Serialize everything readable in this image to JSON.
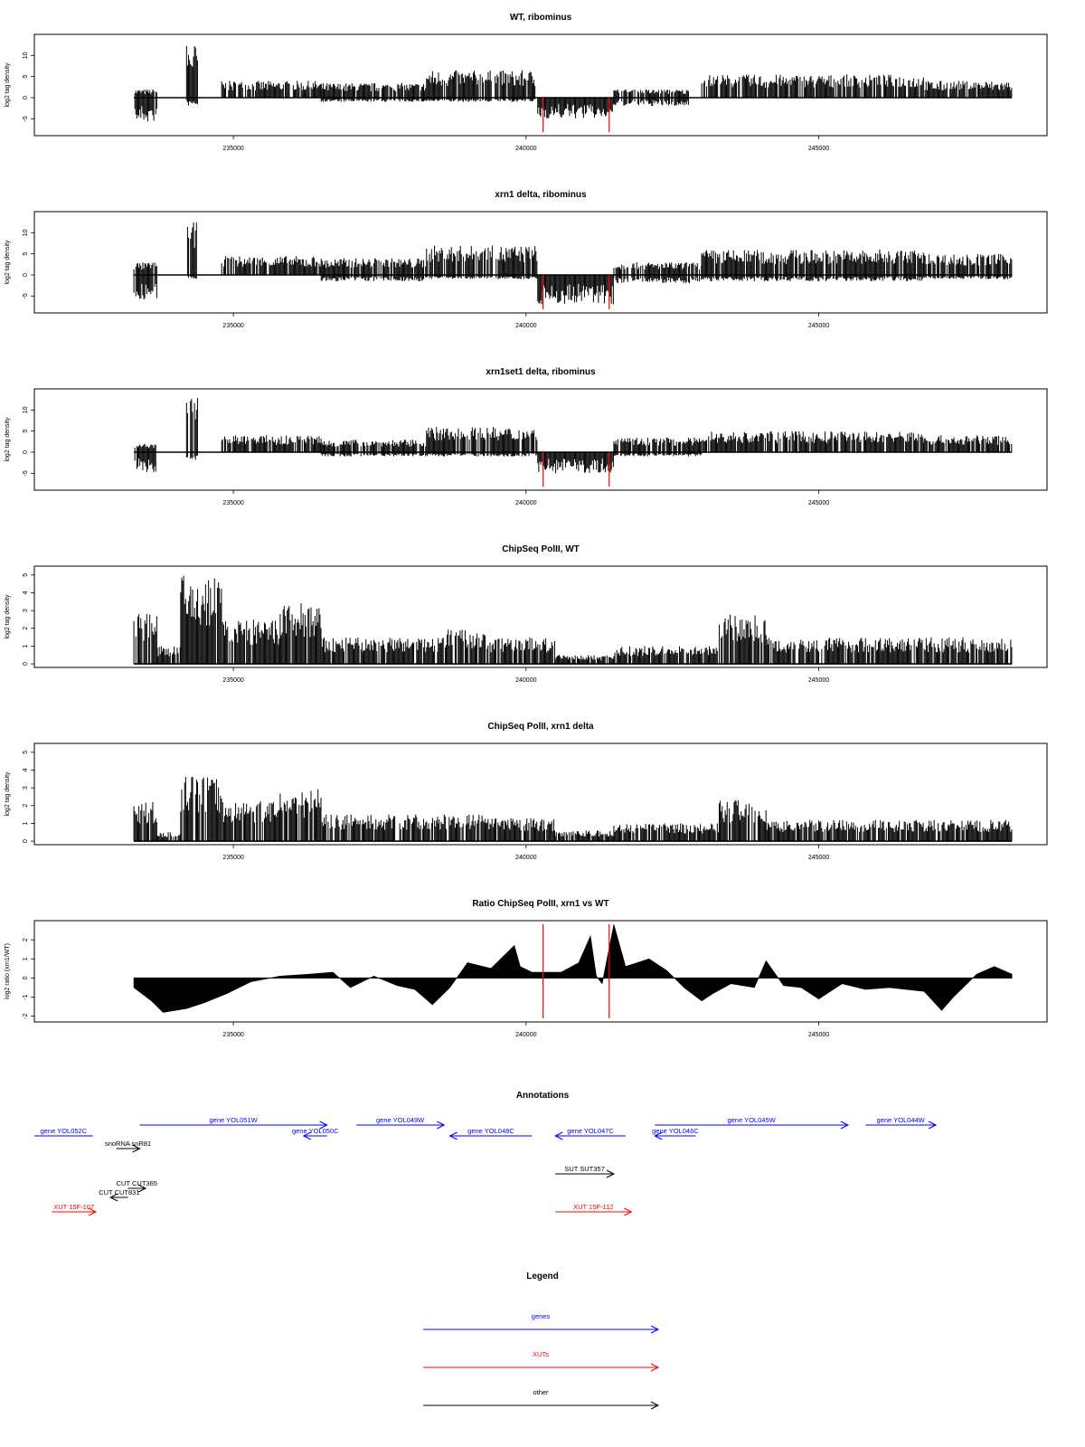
{
  "chart_data": [
    {
      "type": "bar",
      "title": "WT, ribominus",
      "ylabel": "log2 tag density",
      "ylim": [
        -9,
        15
      ],
      "yticks": [
        -5,
        0,
        5,
        10
      ],
      "xlim": [
        231600,
        248900
      ],
      "xticks": [
        "235000",
        "240000",
        "245000"
      ],
      "highlight_positions": [
        240290,
        241420
      ],
      "highlight_color": "#ff0000",
      "series": [
        {
          "segments": [
            {
              "x": [
                233300,
                233700
              ],
              "top": 2,
              "bottom": -6
            },
            {
              "x": [
                234200,
                234400
              ],
              "top": 13,
              "bottom": -2
            },
            {
              "x": [
                234800,
                236500
              ],
              "top": 4,
              "bottom": 0
            },
            {
              "x": [
                236500,
                238300
              ],
              "top": 3.5,
              "bottom": -1
            },
            {
              "x": [
                238300,
                240200
              ],
              "top": 6.5,
              "bottom": -1
            },
            {
              "x": [
                240200,
                241500
              ],
              "top": 0,
              "bottom": -5
            },
            {
              "x": [
                241500,
                242800
              ],
              "top": 2,
              "bottom": -2
            },
            {
              "x": [
                243000,
                246800
              ],
              "top": 5.5,
              "bottom": 0
            },
            {
              "x": [
                246800,
                248300
              ],
              "top": 4,
              "bottom": 0
            }
          ]
        }
      ]
    },
    {
      "type": "bar",
      "title": "xrn1 delta, ribominus",
      "ylabel": "log2 tag density",
      "ylim": [
        -9,
        15
      ],
      "yticks": [
        -5,
        0,
        5,
        10
      ],
      "xlim": [
        231600,
        248900
      ],
      "xticks": [
        "235000",
        "240000",
        "245000"
      ],
      "highlight_positions": [
        240290,
        241420
      ],
      "highlight_color": "#ff0000",
      "series": [
        {
          "segments": [
            {
              "x": [
                233300,
                233700
              ],
              "top": 3,
              "bottom": -6
            },
            {
              "x": [
                234200,
                234400
              ],
              "top": 12.5,
              "bottom": -1
            },
            {
              "x": [
                234800,
                236500
              ],
              "top": 4.5,
              "bottom": 0
            },
            {
              "x": [
                236500,
                238300
              ],
              "top": 4,
              "bottom": -1.5
            },
            {
              "x": [
                238300,
                240200
              ],
              "top": 7,
              "bottom": -1
            },
            {
              "x": [
                240200,
                241500
              ],
              "top": 0,
              "bottom": -7
            },
            {
              "x": [
                241500,
                243000
              ],
              "top": 3,
              "bottom": -2
            },
            {
              "x": [
                243000,
                246800
              ],
              "top": 6,
              "bottom": -1.5
            },
            {
              "x": [
                246800,
                248300
              ],
              "top": 5,
              "bottom": -1
            }
          ]
        }
      ]
    },
    {
      "type": "bar",
      "title": "xrn1set1 delta, ribominus",
      "ylabel": "log2 tag density",
      "ylim": [
        -9,
        15
      ],
      "yticks": [
        -5,
        0,
        5,
        10
      ],
      "xlim": [
        231600,
        248900
      ],
      "xticks": [
        "235000",
        "240000",
        "245000"
      ],
      "highlight_positions": [
        240290,
        241420
      ],
      "highlight_color": "#ff0000",
      "series": [
        {
          "segments": [
            {
              "x": [
                233300,
                233700
              ],
              "top": 2,
              "bottom": -5
            },
            {
              "x": [
                234200,
                234400
              ],
              "top": 13,
              "bottom": -2
            },
            {
              "x": [
                234800,
                236500
              ],
              "top": 4,
              "bottom": 0
            },
            {
              "x": [
                236500,
                238300
              ],
              "top": 3,
              "bottom": -1
            },
            {
              "x": [
                238300,
                240200
              ],
              "top": 6,
              "bottom": -1
            },
            {
              "x": [
                240200,
                241500
              ],
              "top": 0,
              "bottom": -5
            },
            {
              "x": [
                241500,
                243000
              ],
              "top": 3.5,
              "bottom": -1
            },
            {
              "x": [
                243000,
                246800
              ],
              "top": 5,
              "bottom": 0
            },
            {
              "x": [
                246800,
                248300
              ],
              "top": 4,
              "bottom": 0
            }
          ]
        }
      ]
    },
    {
      "type": "bar",
      "title": "ChipSeq PolII, WT",
      "ylabel": "log2 tag density",
      "ylim": [
        -0.2,
        5.5
      ],
      "yticks": [
        0,
        1,
        2,
        3,
        4,
        5
      ],
      "xlim": [
        231600,
        248900
      ],
      "xticks": [
        "235000",
        "240000",
        "245000"
      ],
      "highlight_positions": [
        240290,
        241420
      ],
      "highlight_color": "#ff0000",
      "series": [
        {
          "segments": [
            {
              "x": [
                233300,
                233700
              ],
              "top": 3,
              "bottom": 0
            },
            {
              "x": [
                233700,
                234100
              ],
              "top": 1,
              "bottom": 0
            },
            {
              "x": [
                234100,
                234800
              ],
              "top": 5,
              "bottom": 0
            },
            {
              "x": [
                234800,
                235800
              ],
              "top": 2.5,
              "bottom": 0
            },
            {
              "x": [
                235800,
                236500
              ],
              "top": 3.5,
              "bottom": 0
            },
            {
              "x": [
                236500,
                238500
              ],
              "top": 1.5,
              "bottom": 0
            },
            {
              "x": [
                238500,
                239300
              ],
              "top": 2,
              "bottom": 0
            },
            {
              "x": [
                239300,
                240500
              ],
              "top": 1.5,
              "bottom": 0
            },
            {
              "x": [
                240500,
                241500
              ],
              "top": 0.5,
              "bottom": 0
            },
            {
              "x": [
                241500,
                243300
              ],
              "top": 1,
              "bottom": 0
            },
            {
              "x": [
                243300,
                244100
              ],
              "top": 2.8,
              "bottom": 0
            },
            {
              "x": [
                244100,
                248300
              ],
              "top": 1.5,
              "bottom": 0
            }
          ]
        }
      ]
    },
    {
      "type": "bar",
      "title": "ChipSeq PolII, xrn1 delta",
      "ylabel": "log2 tag density",
      "ylim": [
        -0.2,
        5.5
      ],
      "yticks": [
        0,
        1,
        2,
        3,
        4,
        5
      ],
      "xlim": [
        231600,
        248900
      ],
      "xticks": [
        "235000",
        "240000",
        "245000"
      ],
      "highlight_positions": [
        240290,
        241420
      ],
      "highlight_color": "#ff0000",
      "series": [
        {
          "segments": [
            {
              "x": [
                233300,
                233700
              ],
              "top": 2.2,
              "bottom": 0
            },
            {
              "x": [
                233700,
                234100
              ],
              "top": 0.5,
              "bottom": 0
            },
            {
              "x": [
                234100,
                234800
              ],
              "top": 3.7,
              "bottom": 0
            },
            {
              "x": [
                234800,
                235800
              ],
              "top": 2.3,
              "bottom": 0
            },
            {
              "x": [
                235800,
                236500
              ],
              "top": 3,
              "bottom": 0
            },
            {
              "x": [
                236500,
                238500
              ],
              "top": 1.5,
              "bottom": 0
            },
            {
              "x": [
                238500,
                239300
              ],
              "top": 1.5,
              "bottom": 0
            },
            {
              "x": [
                239300,
                240500
              ],
              "top": 1.3,
              "bottom": 0
            },
            {
              "x": [
                240500,
                241500
              ],
              "top": 0.6,
              "bottom": 0
            },
            {
              "x": [
                241500,
                243300
              ],
              "top": 1,
              "bottom": 0
            },
            {
              "x": [
                243300,
                244100
              ],
              "top": 2.4,
              "bottom": 0
            },
            {
              "x": [
                244100,
                248300
              ],
              "top": 1.2,
              "bottom": 0
            }
          ]
        }
      ]
    },
    {
      "type": "area",
      "title": "Ratio ChipSeq PolII, xrn1 vs WT",
      "ylabel": "log2 ratio (xrn1/WT)",
      "ylim": [
        -2.3,
        3
      ],
      "yticks": [
        -2,
        -1,
        0,
        1,
        2
      ],
      "xlim": [
        231600,
        248900
      ],
      "xticks": [
        "235000",
        "240000",
        "245000"
      ],
      "highlight_positions": [
        240290,
        241420
      ],
      "highlight_color": "#ff0000",
      "series": [
        {
          "x": [
            233300,
            233600,
            233800,
            234200,
            234500,
            234900,
            235300,
            235800,
            236300,
            236700,
            237000,
            237400,
            237800,
            238100,
            238400,
            238700,
            239000,
            239400,
            239800,
            239900,
            240100,
            240300,
            240600,
            240900,
            241100,
            241200,
            241300,
            241500,
            241700,
            241900,
            242100,
            242400,
            242700,
            243000,
            243200,
            243500,
            243900,
            244100,
            244400,
            244700,
            245000,
            245400,
            245800,
            246200,
            246500,
            246800,
            247100,
            247300,
            247700,
            248000,
            248300
          ],
          "values": [
            -0.5,
            -1.2,
            -1.8,
            -1.6,
            -1.3,
            -0.8,
            -0.2,
            0.1,
            0.2,
            0.3,
            -0.5,
            0.1,
            -0.4,
            -0.6,
            -1.4,
            -0.5,
            0.8,
            0.5,
            1.7,
            0.6,
            0.3,
            0.3,
            0.3,
            0.8,
            2.2,
            0.1,
            -0.3,
            2.8,
            0.6,
            0.8,
            1.0,
            0.4,
            -0.5,
            -1.2,
            -0.8,
            -0.3,
            -0.5,
            0.9,
            -0.4,
            -0.5,
            -1.1,
            -0.3,
            -0.6,
            -0.5,
            -0.6,
            -0.7,
            -1.7,
            -1.0,
            0.2,
            0.6,
            0.2
          ]
        }
      ]
    }
  ],
  "annotations": {
    "title": "Annotations",
    "xlim": [
      231600,
      248900
    ],
    "features": [
      {
        "label": "gene YOL052C",
        "start": 231600,
        "end": 232600,
        "row": 1,
        "color": "#0000ff",
        "arrow": "none"
      },
      {
        "label": "gene YOL051W",
        "start": 233400,
        "end": 236600,
        "row": 0,
        "color": "#0000ff",
        "arrow": "right"
      },
      {
        "label": "gene YOL050C",
        "start": 236200,
        "end": 236600,
        "row": 1,
        "color": "#0000ff",
        "arrow": "left"
      },
      {
        "label": "gene YOL049W",
        "start": 237100,
        "end": 238600,
        "row": 0,
        "color": "#0000ff",
        "arrow": "right"
      },
      {
        "label": "gene YOL048C",
        "start": 238700,
        "end": 240100,
        "row": 1,
        "color": "#0000ff",
        "arrow": "left"
      },
      {
        "label": "gene YOL047C",
        "start": 240500,
        "end": 241700,
        "row": 1,
        "color": "#0000ff",
        "arrow": "left"
      },
      {
        "label": "gene YOL045W",
        "start": 242200,
        "end": 245500,
        "row": 0,
        "color": "#0000ff",
        "arrow": "right"
      },
      {
        "label": "gene YOL046C",
        "start": 242200,
        "end": 242900,
        "row": 1,
        "color": "#0000ff",
        "arrow": "left"
      },
      {
        "label": "gene YOL044W",
        "start": 245800,
        "end": 247000,
        "row": 0,
        "color": "#0000ff",
        "arrow": "right"
      },
      {
        "label": "snoRNA snR81",
        "start": 233000,
        "end": 233400,
        "row": 2,
        "color": "#000000",
        "arrow": "right"
      },
      {
        "label": "SUT SUT357",
        "start": 240500,
        "end": 241500,
        "row": 3,
        "color": "#000000",
        "arrow": "right"
      },
      {
        "label": "CUT CUT365",
        "start": 233200,
        "end": 233500,
        "row": 4,
        "color": "#000000",
        "arrow": "right"
      },
      {
        "label": "CUT CUT831",
        "start": 232900,
        "end": 233200,
        "row": 5,
        "color": "#000000",
        "arrow": "left"
      },
      {
        "label": "XUT 15F-107",
        "start": 231900,
        "end": 232650,
        "row": 6,
        "color": "#ff0000",
        "arrow": "right"
      },
      {
        "label": "XUT 15F-112",
        "start": 240500,
        "end": 241800,
        "row": 6,
        "color": "#ff0000",
        "arrow": "right"
      }
    ]
  },
  "legend": {
    "title": "Legend",
    "items": [
      {
        "label": "genes",
        "color": "#0000ff"
      },
      {
        "label": "XUTs",
        "color": "#ff0000"
      },
      {
        "label": "other",
        "color": "#000000"
      }
    ]
  }
}
